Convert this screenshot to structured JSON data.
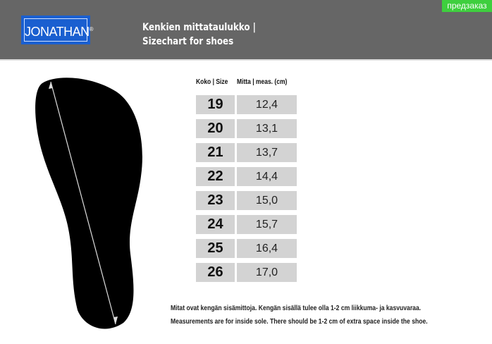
{
  "badge": "предзаказ",
  "logo": {
    "text": "JONATHAN",
    "mark": "®"
  },
  "title": {
    "line1": "Kenkien mittataulukko  |",
    "line2": "Sizechart for shoes"
  },
  "table": {
    "headers": [
      "Koko | Size",
      "Mitta | meas. (cm)"
    ],
    "rows": [
      [
        "19",
        "12,4"
      ],
      [
        "20",
        "13,1"
      ],
      [
        "21",
        "13,7"
      ],
      [
        "22",
        "14,4"
      ],
      [
        "23",
        "15,0"
      ],
      [
        "24",
        "15,7"
      ],
      [
        "25",
        "16,4"
      ],
      [
        "26",
        "17,0"
      ]
    ]
  },
  "notes": [
    "Mitat ovat kengän sisämittoja. Kengän sisällä tulee olla 1-2 cm liikkuma- ja kasvuvaraa.",
    "Measurements are for inside sole. There should be 1-2 cm of extra space inside the shoe."
  ],
  "colors": {
    "header": "#666666",
    "badge": "#3ecf3e",
    "logo": "#1a5fd0",
    "cell": "#d3d3d3"
  }
}
